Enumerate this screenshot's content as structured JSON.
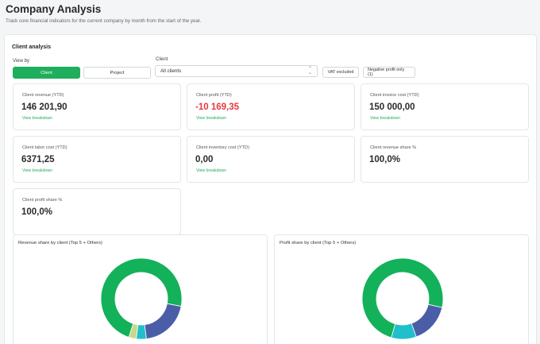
{
  "header": {
    "title": "Company Analysis",
    "subtitle": "Track core financial indicators for the current company by month from the start of the year."
  },
  "panel": {
    "title": "Client analysis",
    "view_by_label": "View by",
    "view_by_options": [
      "Client",
      "Project"
    ],
    "view_by_selected": "Client",
    "client_label": "Client",
    "client_value": "All clients",
    "vat_chip": "VAT excluded",
    "negative_chip": "Negative profit only (1)"
  },
  "cards": [
    {
      "label": "Client revenue (YTD)",
      "value": "146 201,90",
      "link": "View breakdown"
    },
    {
      "label": "Client profit (YTD)",
      "value": "-10 169,35",
      "link": "View breakdown",
      "negative": true
    },
    {
      "label": "Client invoice cost (YTD)",
      "value": "150 000,00",
      "link": "View breakdown"
    },
    {
      "label": "Client labor cost (YTD)",
      "value": "6371,25",
      "link": "View breakdown"
    },
    {
      "label": "Client inventory cost (YTD)",
      "value": "0,00",
      "link": "View breakdown"
    },
    {
      "label": "Client revenue share %",
      "value": "100,0%"
    },
    {
      "label": "Client profit share %",
      "value": "100,0%"
    }
  ],
  "chart_data": [
    {
      "type": "pie",
      "title": "Revenue share by client (Top 5 + Others)",
      "donut": true,
      "slices": [
        {
          "value": 73.0,
          "color": "#13b15a"
        },
        {
          "value": 3.0,
          "color": "#c9d889"
        },
        {
          "value": 4.0,
          "color": "#1fbfcc"
        },
        {
          "value": 20.0,
          "color": "#4a5ea8"
        }
      ]
    },
    {
      "type": "pie",
      "title": "Profit share by client (Top 5 + Others)",
      "donut": true,
      "slices": [
        {
          "value": 74.0,
          "color": "#13b15a"
        },
        {
          "value": 10.0,
          "color": "#1fbfcc"
        },
        {
          "value": 16.0,
          "color": "#4a5ea8"
        }
      ]
    }
  ]
}
